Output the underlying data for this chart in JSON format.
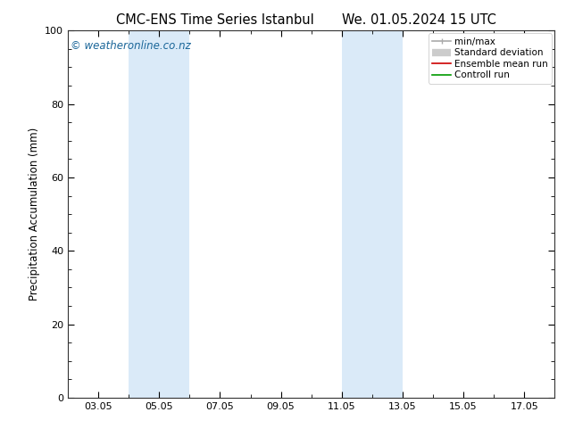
{
  "title_left": "CMC-ENS Time Series Istanbul",
  "title_right": "We. 01.05.2024 15 UTC",
  "ylabel": "Precipitation Accumulation (mm)",
  "ylim": [
    0,
    100
  ],
  "yticks": [
    0,
    20,
    40,
    60,
    80,
    100
  ],
  "xlim": [
    2.0,
    18.0
  ],
  "xtick_labels": [
    "03.05",
    "05.05",
    "07.05",
    "09.05",
    "11.05",
    "13.05",
    "15.05",
    "17.05"
  ],
  "xtick_positions": [
    3,
    5,
    7,
    9,
    11,
    13,
    15,
    17
  ],
  "shade_bands": [
    {
      "x_start": 4.0,
      "x_end": 6.0
    },
    {
      "x_start": 11.0,
      "x_end": 13.0
    }
  ],
  "shade_color": "#daeaf8",
  "watermark": "© weatheronline.co.nz",
  "watermark_color": "#1a6699",
  "legend_items": [
    {
      "label": "min/max",
      "color": "#aaaaaa",
      "lw": 1.2,
      "style": "line_with_caps"
    },
    {
      "label": "Standard deviation",
      "color": "#cccccc",
      "lw": 6,
      "style": "thick"
    },
    {
      "label": "Ensemble mean run",
      "color": "#cc0000",
      "lw": 1.2,
      "style": "line"
    },
    {
      "label": "Controll run",
      "color": "#009900",
      "lw": 1.2,
      "style": "line"
    }
  ],
  "background_color": "#ffffff",
  "figsize": [
    6.34,
    4.9
  ],
  "dpi": 100,
  "title_fontsize": 10.5,
  "label_fontsize": 8.5,
  "tick_fontsize": 8.0,
  "legend_fontsize": 7.5,
  "watermark_fontsize": 8.5
}
